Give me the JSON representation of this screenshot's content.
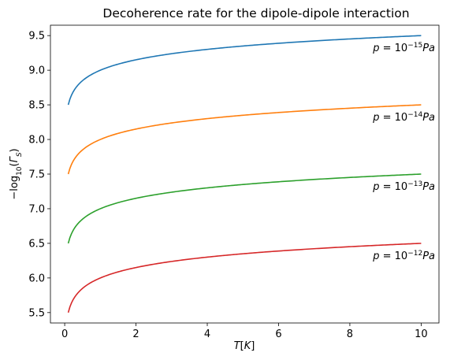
{
  "chart_data": {
    "type": "line",
    "title": "Decoherence rate for the dipole-dipole interaction",
    "xlabel_main": "T",
    "xlabel_unit": "K",
    "ylabel_prefix": "−log",
    "ylabel_sub": "10",
    "ylabel_var": "Γ",
    "ylabel_var_sub": "S",
    "xlim": [
      -0.4,
      10.5
    ],
    "ylim": [
      5.35,
      9.65
    ],
    "xticks": [
      0,
      2,
      4,
      6,
      8,
      10
    ],
    "xtick_labels": [
      "0",
      "2",
      "4",
      "6",
      "8",
      "10"
    ],
    "yticks": [
      5.5,
      6.0,
      6.5,
      7.0,
      7.5,
      8.0,
      8.5,
      9.0,
      9.5
    ],
    "ytick_labels": [
      "5.5",
      "6.0",
      "6.5",
      "7.0",
      "7.5",
      "8.0",
      "8.5",
      "9.0",
      "9.5"
    ],
    "x_range": [
      0.1,
      10
    ],
    "curve_model": "y = base + log10(T/0.1)/2",
    "series": [
      {
        "base": 8.5,
        "color": "#1f77b4",
        "ann_base": "p = 10",
        "ann_exp": "−15",
        "ann_unit": "Pa"
      },
      {
        "base": 7.5,
        "color": "#ff7f0e",
        "ann_base": "p = 10",
        "ann_exp": "−14",
        "ann_unit": "Pa"
      },
      {
        "base": 6.5,
        "color": "#2ca02c",
        "ann_base": "p = 10",
        "ann_exp": "−13",
        "ann_unit": "Pa"
      },
      {
        "base": 5.5,
        "color": "#d62728",
        "ann_base": "p = 10",
        "ann_exp": "−12",
        "ann_unit": "Pa"
      }
    ]
  }
}
